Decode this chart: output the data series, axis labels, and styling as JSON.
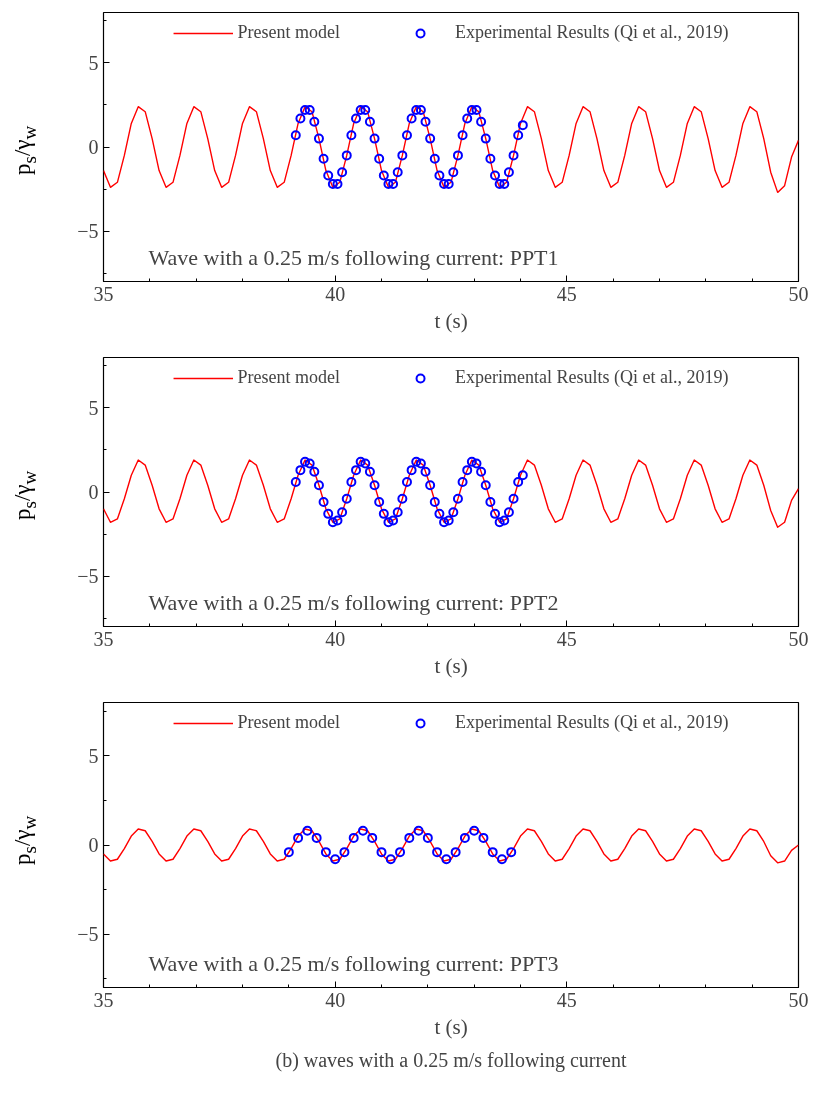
{
  "chart_data": [
    {
      "type": "line",
      "xlabel": "t (s)",
      "ylabel": "p$_{s}$/γ$_{w}$",
      "xlim": [
        35,
        50
      ],
      "ylim": [
        -8,
        8
      ],
      "xticks": [
        35,
        40,
        45,
        50
      ],
      "yticks": [
        -5,
        0,
        5
      ],
      "grid": false,
      "legend": "top",
      "annotations": [
        "Wave with a 0.25 m/s following current: PPT1"
      ],
      "series": [
        {
          "name": "Present model",
          "type": "line",
          "color": "#ff0000",
          "line_style": "solid",
          "x": [
            35.0,
            35.15,
            35.3,
            35.45,
            35.6,
            35.75,
            35.9,
            36.05,
            36.2,
            36.35,
            36.5,
            36.65,
            36.8,
            36.95,
            37.1,
            37.25,
            37.4,
            37.55,
            37.7,
            37.85,
            38.0,
            38.15,
            38.3,
            38.45,
            38.6,
            38.75,
            38.9,
            39.05,
            39.2,
            39.35,
            39.5,
            39.65,
            39.8,
            39.95,
            40.1,
            40.25,
            40.4,
            40.55,
            40.7,
            40.85,
            41.0,
            41.15,
            41.3,
            41.45,
            41.6,
            41.75,
            41.9,
            42.05,
            42.2,
            42.35,
            42.5,
            42.65,
            42.8,
            42.95,
            43.1,
            43.25,
            43.4,
            43.55,
            43.7,
            43.85,
            44.0,
            44.15,
            44.3,
            44.45,
            44.6,
            44.75,
            44.9,
            45.05,
            45.2,
            45.35,
            45.5,
            45.65,
            45.8,
            45.95,
            46.1,
            46.25,
            46.4,
            46.55,
            46.7,
            46.85,
            47.0,
            47.15,
            47.3,
            47.45,
            47.6,
            47.75,
            47.9,
            48.05,
            48.2,
            48.35,
            48.5,
            48.65,
            48.8,
            48.95,
            49.1,
            49.25,
            49.4,
            49.55,
            49.7,
            49.85,
            50.0
          ],
          "values": [
            -1.4,
            -2.4,
            -2.1,
            -0.5,
            1.4,
            2.4,
            2.1,
            0.5,
            -1.4,
            -2.4,
            -2.1,
            -0.5,
            1.4,
            2.4,
            2.1,
            0.5,
            -1.4,
            -2.4,
            -2.1,
            -0.5,
            1.4,
            2.4,
            2.1,
            0.5,
            -1.4,
            -2.4,
            -2.1,
            -0.5,
            1.4,
            2.4,
            2.1,
            0.5,
            -1.4,
            -2.4,
            -2.1,
            -0.5,
            1.4,
            2.4,
            2.1,
            0.5,
            -1.4,
            -2.4,
            -2.1,
            -0.5,
            1.4,
            2.4,
            2.1,
            0.5,
            -1.4,
            -2.4,
            -2.1,
            -0.5,
            1.4,
            2.4,
            2.1,
            0.5,
            -1.4,
            -2.4,
            -2.1,
            -0.5,
            1.4,
            2.4,
            2.1,
            0.5,
            -1.4,
            -2.4,
            -2.1,
            -0.5,
            1.4,
            2.4,
            2.1,
            0.5,
            -1.4,
            -2.4,
            -2.1,
            -0.5,
            1.4,
            2.4,
            2.1,
            0.5,
            -1.4,
            -2.4,
            -2.1,
            -0.5,
            1.4,
            2.4,
            2.1,
            0.5,
            -1.4,
            -2.4,
            -2.1,
            -0.5,
            1.4,
            2.4,
            2.1,
            0.5,
            -1.5,
            -2.7,
            -2.3,
            -0.6,
            0.4
          ]
        },
        {
          "name": "Experimental Results (Qi et al., 2019)",
          "type": "scatter",
          "color": "#0000ff",
          "marker": "circle",
          "x": [
            39.15,
            39.25,
            39.35,
            39.45,
            39.55,
            39.65,
            39.75,
            39.85,
            39.95,
            40.05,
            40.15,
            40.25,
            40.35,
            40.45,
            40.55,
            40.65,
            40.75,
            40.85,
            40.95,
            41.05,
            41.15,
            41.25,
            41.35,
            41.45,
            41.55,
            41.65,
            41.75,
            41.85,
            41.95,
            42.05,
            42.15,
            42.25,
            42.35,
            42.45,
            42.55,
            42.65,
            42.75,
            42.85,
            42.95,
            43.05,
            43.15,
            43.25,
            43.35,
            43.45,
            43.55,
            43.65,
            43.75,
            43.85,
            43.95,
            44.05
          ],
          "values": [
            0.7,
            1.7,
            2.2,
            2.2,
            1.5,
            0.5,
            -0.7,
            -1.7,
            -2.2,
            -2.2,
            -1.5,
            -0.5,
            0.7,
            1.7,
            2.2,
            2.2,
            1.5,
            0.5,
            -0.7,
            -1.7,
            -2.2,
            -2.2,
            -1.5,
            -0.5,
            0.7,
            1.7,
            2.2,
            2.2,
            1.5,
            0.5,
            -0.7,
            -1.7,
            -2.2,
            -2.2,
            -1.5,
            -0.5,
            0.7,
            1.7,
            2.2,
            2.2,
            1.5,
            0.5,
            -0.7,
            -1.7,
            -2.2,
            -2.2,
            -1.5,
            -0.5,
            0.7,
            1.3
          ]
        }
      ]
    },
    {
      "type": "line",
      "xlabel": "t (s)",
      "ylabel": "p$_{s}$/γ$_{w}$",
      "xlim": [
        35,
        50
      ],
      "ylim": [
        -8,
        8
      ],
      "xticks": [
        35,
        40,
        45,
        50
      ],
      "yticks": [
        -5,
        0,
        5
      ],
      "grid": false,
      "legend": "top",
      "annotations": [
        "Wave with a 0.25 m/s following current: PPT2"
      ],
      "series": [
        {
          "name": "Present model",
          "type": "line",
          "color": "#ff0000",
          "line_style": "solid",
          "x": [
            35.0,
            35.15,
            35.3,
            35.45,
            35.6,
            35.75,
            35.9,
            36.05,
            36.2,
            36.35,
            36.5,
            36.65,
            36.8,
            36.95,
            37.1,
            37.25,
            37.4,
            37.55,
            37.7,
            37.85,
            38.0,
            38.15,
            38.3,
            38.45,
            38.6,
            38.75,
            38.9,
            39.05,
            39.2,
            39.35,
            39.5,
            39.65,
            39.8,
            39.95,
            40.1,
            40.25,
            40.4,
            40.55,
            40.7,
            40.85,
            41.0,
            41.15,
            41.3,
            41.45,
            41.6,
            41.75,
            41.9,
            42.05,
            42.2,
            42.35,
            42.5,
            42.65,
            42.8,
            42.95,
            43.1,
            43.25,
            43.4,
            43.55,
            43.7,
            43.85,
            44.0,
            44.15,
            44.3,
            44.45,
            44.6,
            44.75,
            44.9,
            45.05,
            45.2,
            45.35,
            45.5,
            45.65,
            45.8,
            45.95,
            46.1,
            46.25,
            46.4,
            46.55,
            46.7,
            46.85,
            47.0,
            47.15,
            47.3,
            47.45,
            47.6,
            47.75,
            47.9,
            48.05,
            48.2,
            48.35,
            48.5,
            48.65,
            48.8,
            48.95,
            49.1,
            49.25,
            49.4,
            49.55,
            49.7,
            49.85,
            50.0
          ],
          "values": [
            -1.0,
            -1.8,
            -1.6,
            -0.4,
            1.0,
            1.9,
            1.6,
            0.4,
            -1.0,
            -1.8,
            -1.6,
            -0.4,
            1.0,
            1.9,
            1.6,
            0.4,
            -1.0,
            -1.8,
            -1.6,
            -0.4,
            1.0,
            1.9,
            1.6,
            0.4,
            -1.0,
            -1.8,
            -1.6,
            -0.4,
            1.0,
            1.9,
            1.6,
            0.4,
            -1.0,
            -1.8,
            -1.6,
            -0.4,
            1.0,
            1.9,
            1.6,
            0.4,
            -1.0,
            -1.8,
            -1.6,
            -0.4,
            1.0,
            1.9,
            1.6,
            0.4,
            -1.0,
            -1.8,
            -1.6,
            -0.4,
            1.0,
            1.9,
            1.6,
            0.4,
            -1.0,
            -1.8,
            -1.6,
            -0.4,
            1.0,
            1.9,
            1.6,
            0.4,
            -1.0,
            -1.8,
            -1.6,
            -0.4,
            1.0,
            1.9,
            1.6,
            0.4,
            -1.0,
            -1.8,
            -1.6,
            -0.4,
            1.0,
            1.9,
            1.6,
            0.4,
            -1.0,
            -1.8,
            -1.6,
            -0.4,
            1.0,
            1.9,
            1.6,
            0.4,
            -1.0,
            -1.8,
            -1.6,
            -0.4,
            1.0,
            1.9,
            1.6,
            0.4,
            -1.1,
            -2.1,
            -1.8,
            -0.5,
            0.2
          ]
        },
        {
          "name": "Experimental Results (Qi et al., 2019)",
          "type": "scatter",
          "color": "#0000ff",
          "marker": "circle",
          "x": [
            39.15,
            39.25,
            39.35,
            39.45,
            39.55,
            39.65,
            39.75,
            39.85,
            39.95,
            40.05,
            40.15,
            40.25,
            40.35,
            40.45,
            40.55,
            40.65,
            40.75,
            40.85,
            40.95,
            41.05,
            41.15,
            41.25,
            41.35,
            41.45,
            41.55,
            41.65,
            41.75,
            41.85,
            41.95,
            42.05,
            42.15,
            42.25,
            42.35,
            42.45,
            42.55,
            42.65,
            42.75,
            42.85,
            42.95,
            43.05,
            43.15,
            43.25,
            43.35,
            43.45,
            43.55,
            43.65,
            43.75,
            43.85,
            43.95,
            44.05
          ],
          "values": [
            0.6,
            1.3,
            1.8,
            1.7,
            1.2,
            0.4,
            -0.6,
            -1.3,
            -1.8,
            -1.7,
            -1.2,
            -0.4,
            0.6,
            1.3,
            1.8,
            1.7,
            1.2,
            0.4,
            -0.6,
            -1.3,
            -1.8,
            -1.7,
            -1.2,
            -0.4,
            0.6,
            1.3,
            1.8,
            1.7,
            1.2,
            0.4,
            -0.6,
            -1.3,
            -1.8,
            -1.7,
            -1.2,
            -0.4,
            0.6,
            1.3,
            1.8,
            1.7,
            1.2,
            0.4,
            -0.6,
            -1.3,
            -1.8,
            -1.7,
            -1.2,
            -0.4,
            0.6,
            1.0
          ]
        }
      ]
    },
    {
      "type": "line",
      "xlabel": "t (s)",
      "ylabel": "p$_{s}$/γ$_{w}$",
      "xlim": [
        35,
        50
      ],
      "ylim": [
        -8,
        8
      ],
      "xticks": [
        35,
        40,
        45,
        50
      ],
      "yticks": [
        -5,
        0,
        5
      ],
      "grid": false,
      "legend": "top",
      "annotations": [
        "Wave with a 0.25 m/s following current: PPT3",
        "(b) waves with a 0.25 m/s following current"
      ],
      "series": [
        {
          "name": "Present model",
          "type": "line",
          "color": "#ff0000",
          "line_style": "solid",
          "x": [
            35.0,
            35.15,
            35.3,
            35.45,
            35.6,
            35.75,
            35.9,
            36.05,
            36.2,
            36.35,
            36.5,
            36.65,
            36.8,
            36.95,
            37.1,
            37.25,
            37.4,
            37.55,
            37.7,
            37.85,
            38.0,
            38.15,
            38.3,
            38.45,
            38.6,
            38.75,
            38.9,
            39.05,
            39.2,
            39.35,
            39.5,
            39.65,
            39.8,
            39.95,
            40.1,
            40.25,
            40.4,
            40.55,
            40.7,
            40.85,
            41.0,
            41.15,
            41.3,
            41.45,
            41.6,
            41.75,
            41.9,
            42.05,
            42.2,
            42.35,
            42.5,
            42.65,
            42.8,
            42.95,
            43.1,
            43.25,
            43.4,
            43.55,
            43.7,
            43.85,
            44.0,
            44.15,
            44.3,
            44.45,
            44.6,
            44.75,
            44.9,
            45.05,
            45.2,
            45.35,
            45.5,
            45.65,
            45.8,
            45.95,
            46.1,
            46.25,
            46.4,
            46.55,
            46.7,
            46.85,
            47.0,
            47.15,
            47.3,
            47.45,
            47.6,
            47.75,
            47.9,
            48.05,
            48.2,
            48.35,
            48.5,
            48.65,
            48.8,
            48.95,
            49.1,
            49.25,
            49.4,
            49.55,
            49.7,
            49.85,
            50.0
          ],
          "values": [
            -0.5,
            -0.9,
            -0.8,
            -0.2,
            0.5,
            0.9,
            0.8,
            0.2,
            -0.5,
            -0.9,
            -0.8,
            -0.2,
            0.5,
            0.9,
            0.8,
            0.2,
            -0.5,
            -0.9,
            -0.8,
            -0.2,
            0.5,
            0.9,
            0.8,
            0.2,
            -0.5,
            -0.9,
            -0.8,
            -0.2,
            0.5,
            0.9,
            0.8,
            0.2,
            -0.5,
            -0.9,
            -0.8,
            -0.2,
            0.5,
            0.9,
            0.8,
            0.2,
            -0.5,
            -0.9,
            -0.8,
            -0.2,
            0.5,
            0.9,
            0.8,
            0.2,
            -0.5,
            -0.9,
            -0.8,
            -0.2,
            0.5,
            0.9,
            0.8,
            0.2,
            -0.5,
            -0.9,
            -0.8,
            -0.2,
            0.5,
            0.9,
            0.8,
            0.2,
            -0.5,
            -0.9,
            -0.8,
            -0.2,
            0.5,
            0.9,
            0.8,
            0.2,
            -0.5,
            -0.9,
            -0.8,
            -0.2,
            0.5,
            0.9,
            0.8,
            0.2,
            -0.5,
            -0.9,
            -0.8,
            -0.2,
            0.5,
            0.9,
            0.8,
            0.2,
            -0.5,
            -0.9,
            -0.8,
            -0.2,
            0.5,
            0.9,
            0.8,
            0.2,
            -0.6,
            -1.0,
            -0.9,
            -0.3,
            0.0
          ]
        },
        {
          "name": "Experimental Results (Qi et al., 2019)",
          "type": "scatter",
          "color": "#0000ff",
          "marker": "circle",
          "x": [
            39.0,
            39.2,
            39.4,
            39.6,
            39.8,
            40.0,
            40.2,
            40.4,
            40.6,
            40.8,
            41.0,
            41.2,
            41.4,
            41.6,
            41.8,
            42.0,
            42.2,
            42.4,
            42.6,
            42.8,
            43.0,
            43.2,
            43.4,
            43.6,
            43.8
          ],
          "values": [
            -0.4,
            0.4,
            0.8,
            0.4,
            -0.4,
            -0.8,
            -0.4,
            0.4,
            0.8,
            0.4,
            -0.4,
            -0.8,
            -0.4,
            0.4,
            0.8,
            0.4,
            -0.4,
            -0.8,
            -0.4,
            0.4,
            0.8,
            0.4,
            -0.4,
            -0.8,
            -0.4
          ]
        }
      ]
    }
  ]
}
